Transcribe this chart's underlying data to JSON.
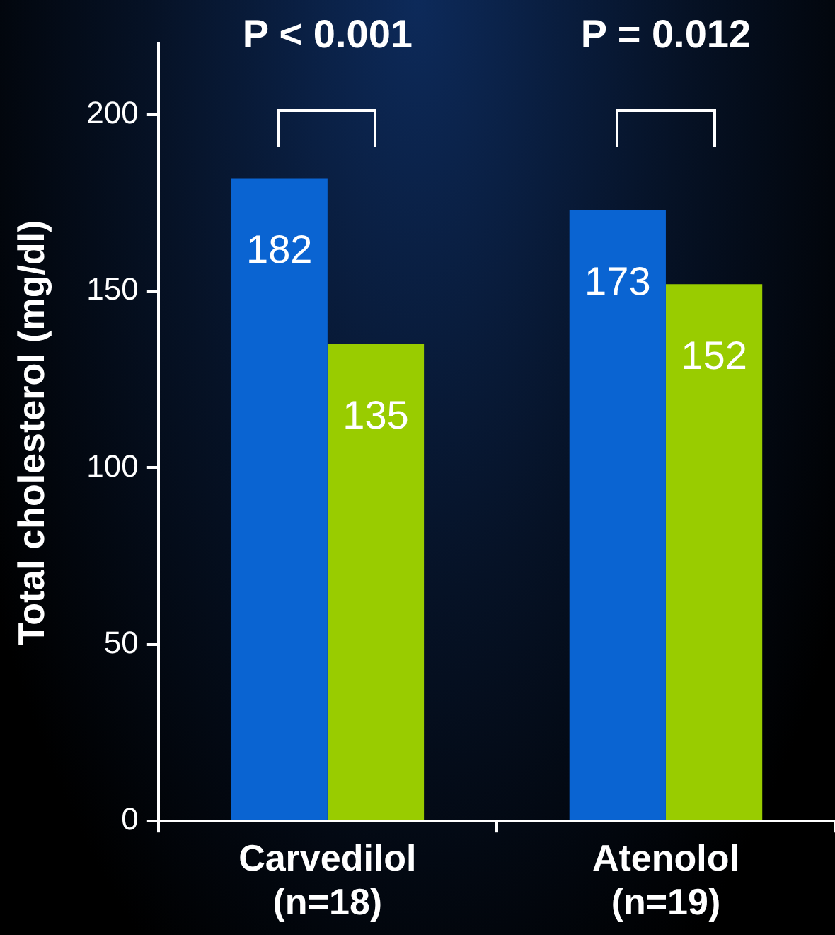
{
  "chart_data": {
    "type": "bar",
    "ylabel": "Total cholesterol (mg/dl)",
    "categories": [
      "Carvedilol\n(n=18)",
      "Atenolol\n(n=19)"
    ],
    "series": [
      {
        "color": "#0a64d2",
        "values": [
          182,
          173
        ]
      },
      {
        "color": "#99cc00",
        "values": [
          135,
          152
        ]
      }
    ],
    "ylim": [
      0,
      220
    ],
    "yticks": [
      0,
      50,
      100,
      150,
      200
    ],
    "grid": false,
    "legend": false,
    "data_labels": true,
    "annotations": [
      "P < 0.001",
      "P = 0.012"
    ]
  }
}
